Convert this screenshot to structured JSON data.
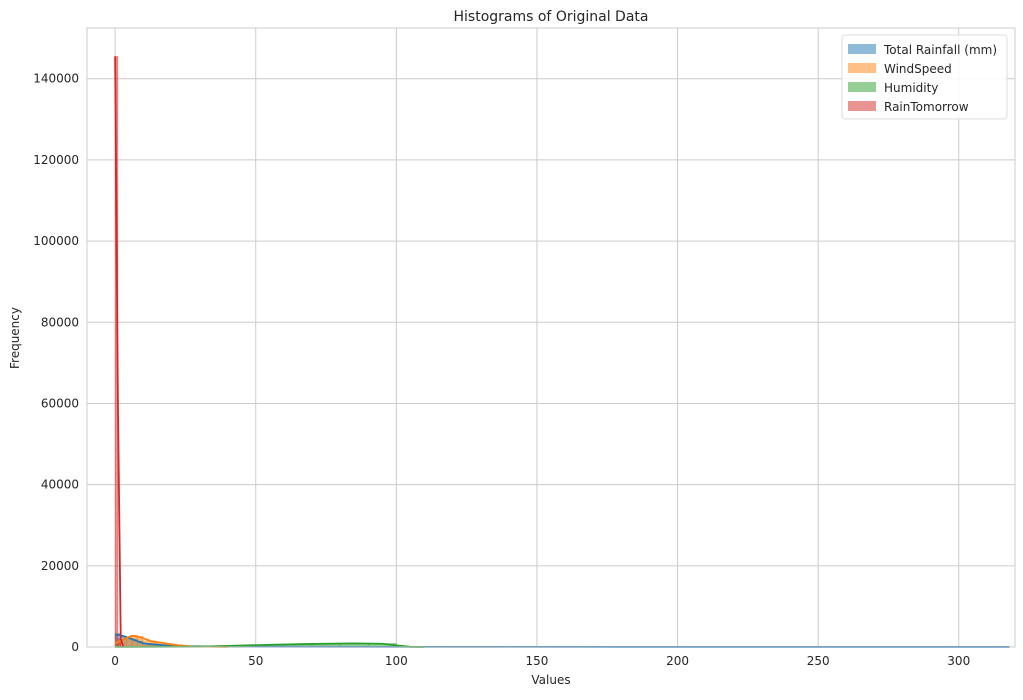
{
  "chart_data": {
    "type": "histogram",
    "title": "Histograms of Original Data",
    "xlabel": "Values",
    "ylabel": "Frequency",
    "xlim": [
      -10,
      320
    ],
    "ylim": [
      0,
      152500
    ],
    "xticks": [
      0,
      50,
      100,
      150,
      200,
      250,
      300
    ],
    "yticks": [
      0,
      20000,
      40000,
      60000,
      80000,
      100000,
      120000,
      140000
    ],
    "grid": true,
    "legend_position": "top-right",
    "series": [
      {
        "name": "Total Rainfall (mm)",
        "color": "#1f77b4",
        "bins": [
          [
            0,
            2,
            3300
          ],
          [
            2,
            4,
            2700
          ],
          [
            4,
            6,
            2200
          ],
          [
            6,
            8,
            2000
          ],
          [
            8,
            10,
            1500
          ],
          [
            10,
            15,
            500
          ],
          [
            15,
            20,
            250
          ],
          [
            20,
            30,
            120
          ],
          [
            30,
            318,
            40
          ]
        ],
        "kde": [
          [
            0,
            3100
          ],
          [
            2,
            2900
          ],
          [
            5,
            2200
          ],
          [
            10,
            900
          ],
          [
            20,
            250
          ],
          [
            40,
            80
          ],
          [
            100,
            30
          ],
          [
            200,
            15
          ],
          [
            318,
            10
          ]
        ]
      },
      {
        "name": "WindSpeed",
        "color": "#ff7f0e",
        "bins": [
          [
            0,
            2,
            1200
          ],
          [
            2,
            4,
            1800
          ],
          [
            4,
            6,
            2300
          ],
          [
            6,
            8,
            2900
          ],
          [
            8,
            10,
            2600
          ],
          [
            10,
            14,
            1500
          ],
          [
            14,
            18,
            1000
          ],
          [
            18,
            22,
            700
          ],
          [
            22,
            30,
            200
          ]
        ],
        "kde": [
          [
            0,
            900
          ],
          [
            3,
            1900
          ],
          [
            6,
            2800
          ],
          [
            9,
            2400
          ],
          [
            13,
            1400
          ],
          [
            18,
            900
          ],
          [
            22,
            450
          ],
          [
            28,
            100
          ],
          [
            40,
            10
          ]
        ]
      },
      {
        "name": "Humidity",
        "color": "#2ca02c",
        "bins": [
          [
            0,
            40,
            60
          ],
          [
            40,
            50,
            350
          ],
          [
            50,
            60,
            550
          ],
          [
            60,
            70,
            700
          ],
          [
            70,
            80,
            800
          ],
          [
            80,
            90,
            900
          ],
          [
            90,
            100,
            850
          ],
          [
            100,
            105,
            150
          ]
        ],
        "kde": [
          [
            0,
            10
          ],
          [
            30,
            80
          ],
          [
            45,
            350
          ],
          [
            55,
            550
          ],
          [
            70,
            750
          ],
          [
            85,
            900
          ],
          [
            95,
            800
          ],
          [
            100,
            400
          ],
          [
            105,
            50
          ],
          [
            110,
            0
          ]
        ]
      },
      {
        "name": "RainTomorrow",
        "color": "#d62728",
        "bins": [
          [
            0,
            1,
            145500
          ],
          [
            1,
            2,
            2000
          ]
        ],
        "kde": [
          [
            0,
            145500
          ],
          [
            1,
            60000
          ],
          [
            2,
            2000
          ],
          [
            3,
            0
          ]
        ]
      }
    ]
  }
}
